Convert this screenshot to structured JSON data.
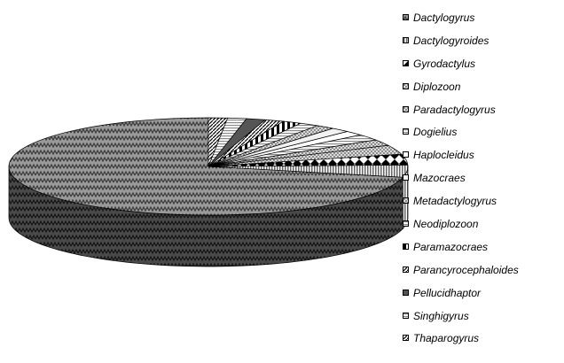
{
  "chart_data": {
    "type": "pie",
    "title": "",
    "legend_position": "right",
    "categories": [
      "Dactylogyrus",
      "Dactylogyroides",
      "Gyrodactylus",
      "Diplozoon",
      "Paradactylogyrus",
      "Dogielius",
      "Haplocleidus",
      "Mazocraes",
      "Metadactylogyrus",
      "Neodiplozoon",
      "Paramazocraes",
      "Parancyrocephaloides",
      "Pellucidhaptor",
      "Singhigyrus",
      "Thaparogyrus"
    ],
    "values": [
      70,
      4,
      3.5,
      3,
      2,
      2,
      1.5,
      1.5,
      1.5,
      1.5,
      1.5,
      1.5,
      1.5,
      1.5,
      1.5
    ],
    "colors": [
      "#7a7a7a",
      "#b4b4b4",
      "#2a2a2a",
      "#d0d0d0",
      "#8a8a8a",
      "#9a9a9a",
      "#ffffff",
      "#f2f2f2",
      "#a6a6a6",
      "#e6e6e6",
      "#3c3c3c",
      "#303030",
      "#555555",
      "#ffffff",
      "#cfcfcf"
    ],
    "patterns": [
      "zigzag",
      "vstripes",
      "diamond",
      "dots",
      "dots",
      "hstripes",
      "plain",
      "plain",
      "dots",
      "hstripes",
      "split",
      "hatch",
      "solid",
      "hstripes",
      "hatch"
    ]
  }
}
